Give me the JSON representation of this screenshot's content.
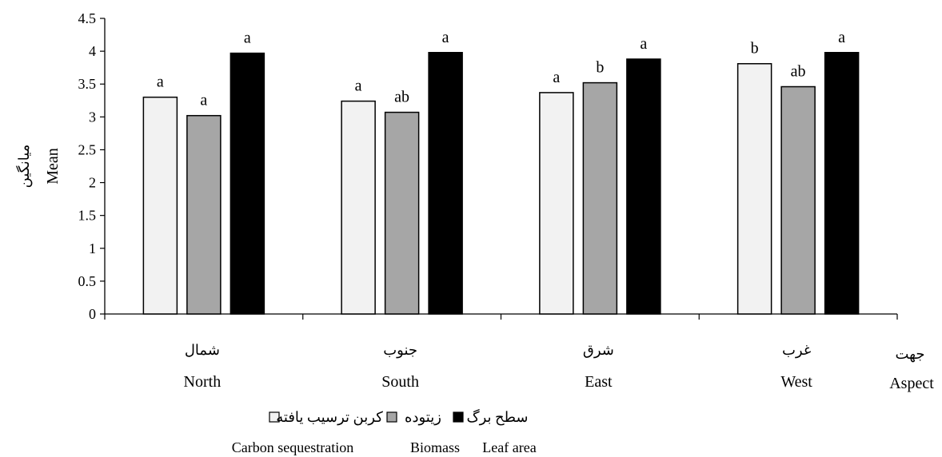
{
  "chart_data": {
    "type": "bar",
    "ylabel_fa": "میانگین",
    "ylabel_en": "Mean",
    "xlabel_fa": "جهت",
    "xlabel_en": "Aspect",
    "ylim": [
      0,
      4.5
    ],
    "yticks": [
      "0",
      "0.5",
      "1",
      "1.5",
      "2",
      "2.5",
      "3",
      "3.5",
      "4",
      "4.5"
    ],
    "categories": [
      {
        "en": "North",
        "fa": "شمال"
      },
      {
        "en": "South",
        "fa": "جنوب"
      },
      {
        "en": "East",
        "fa": "شرق"
      },
      {
        "en": "West",
        "fa": "غرب"
      }
    ],
    "series": [
      {
        "name_en": "Carbon sequestration",
        "name_fa": "کربن ترسیب یافته",
        "color": "#f2f2f2",
        "values": [
          3.3,
          3.24,
          3.37,
          3.81
        ],
        "letters": [
          "a",
          "a",
          "a",
          "b"
        ]
      },
      {
        "name_en": "Biomass",
        "name_fa": "زیتوده",
        "color": "#a6a6a6",
        "values": [
          3.02,
          3.07,
          3.52,
          3.46
        ],
        "letters": [
          "a",
          "ab",
          "b",
          "ab"
        ]
      },
      {
        "name_en": "Leaf area",
        "name_fa": "سطح برگ",
        "color": "#000000",
        "values": [
          3.97,
          3.98,
          3.88,
          3.98
        ],
        "letters": [
          "a",
          "a",
          "a",
          "a"
        ]
      }
    ],
    "legend_position": "bottom",
    "grid": false
  }
}
